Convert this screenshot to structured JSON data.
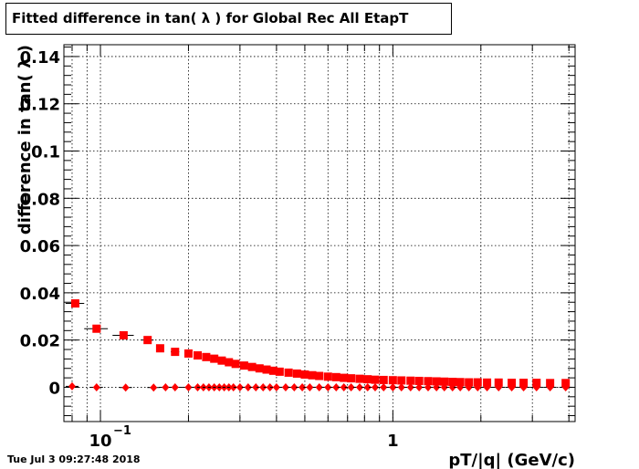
{
  "chart_data": {
    "type": "scatter",
    "title": "Fitted difference in tan( λ ) for Global Rec All EtapT",
    "xlabel": "pT/|q| (GeV/c)",
    "ylabel": "difference in tan( λ )",
    "xscale": "log",
    "xlim": [
      0.075,
      4.2
    ],
    "ylim": [
      -0.0145,
      0.145
    ],
    "grid": true,
    "legend": "none",
    "yticks": [
      {
        "value": 0,
        "label": "0"
      },
      {
        "value": 0.02,
        "label": "0.02"
      },
      {
        "value": 0.04,
        "label": "0.04"
      },
      {
        "value": 0.06,
        "label": "0.06"
      },
      {
        "value": 0.08,
        "label": "0.08"
      },
      {
        "value": 0.1,
        "label": "0.1"
      },
      {
        "value": 0.12,
        "label": "0.12"
      },
      {
        "value": 0.14,
        "label": "0.14"
      }
    ],
    "xticks": [
      {
        "value": 0.1,
        "label": "10",
        "exponent": "−1"
      },
      {
        "value": 1,
        "label": "1",
        "exponent": ""
      }
    ],
    "series": [
      {
        "marker": "square",
        "color": "#ff0000",
        "x": [
          0.082,
          0.097,
          0.12,
          0.145,
          0.16,
          0.18,
          0.2,
          0.215,
          0.23,
          0.245,
          0.26,
          0.275,
          0.29,
          0.31,
          0.33,
          0.35,
          0.37,
          0.39,
          0.41,
          0.44,
          0.47,
          0.5,
          0.53,
          0.56,
          0.6,
          0.64,
          0.68,
          0.72,
          0.77,
          0.82,
          0.87,
          0.93,
          1.0,
          1.07,
          1.15,
          1.23,
          1.32,
          1.41,
          1.5,
          1.6,
          1.7,
          1.82,
          1.95,
          2.1,
          2.3,
          2.55,
          2.8,
          3.1,
          3.45,
          3.9
        ],
        "y": [
          0.0355,
          0.0248,
          0.022,
          0.02,
          0.0165,
          0.015,
          0.0143,
          0.0135,
          0.0128,
          0.0121,
          0.0113,
          0.0106,
          0.0099,
          0.0092,
          0.0086,
          0.008,
          0.0075,
          0.007,
          0.0066,
          0.0062,
          0.0058,
          0.0054,
          0.0051,
          0.0048,
          0.0045,
          0.0043,
          0.004,
          0.0038,
          0.0036,
          0.0034,
          0.0032,
          0.0031,
          0.003,
          0.0029,
          0.0028,
          0.0027,
          0.0026,
          0.0025,
          0.0024,
          0.0023,
          0.0022,
          0.0021,
          0.0021,
          0.002,
          0.002,
          0.0019,
          0.0019,
          0.0019,
          0.0018,
          0.0018
        ],
        "xerr": [
          0.006,
          0.009,
          0.01,
          0.007,
          0.005,
          0.006,
          0.005,
          0.005,
          0.005,
          0.005,
          0.005,
          0.005,
          0.005,
          0.006,
          0.007,
          0.007,
          0.007,
          0.007,
          0.007,
          0.008,
          0.009,
          0.01,
          0.01,
          0.01,
          0.012,
          0.012,
          0.013,
          0.013,
          0.015,
          0.015,
          0.016,
          0.017,
          0.02,
          0.02,
          0.023,
          0.023,
          0.026,
          0.026,
          0.027,
          0.03,
          0.03,
          0.035,
          0.037,
          0.04,
          0.05,
          0.06,
          0.06,
          0.07,
          0.08,
          0.1
        ]
      },
      {
        "marker": "diamond",
        "color": "#ff0000",
        "x": [
          0.08,
          0.097,
          0.122,
          0.152,
          0.167,
          0.18,
          0.2,
          0.215,
          0.225,
          0.235,
          0.245,
          0.255,
          0.265,
          0.275,
          0.285,
          0.3,
          0.32,
          0.34,
          0.36,
          0.38,
          0.4,
          0.43,
          0.46,
          0.49,
          0.52,
          0.56,
          0.6,
          0.64,
          0.68,
          0.72,
          0.77,
          0.82,
          0.87,
          0.93,
          1.0,
          1.07,
          1.15,
          1.23,
          1.32,
          1.41,
          1.5,
          1.6,
          1.7,
          1.82,
          1.95,
          2.1,
          2.3,
          2.55,
          2.8,
          3.1,
          3.45,
          3.9
        ],
        "y": [
          0.0004,
          0.0,
          -0.0001,
          -0.0001,
          0.0,
          0.0,
          0.0,
          0.0,
          0.0,
          0.0,
          0.0,
          0.0,
          0.0,
          0.0,
          0.0,
          0.0,
          0.0,
          0.0,
          0.0,
          0.0,
          0.0,
          0.0,
          0.0,
          0.0,
          0.0,
          0.0,
          0.0,
          0.0,
          0.0,
          0.0,
          0.0,
          0.0,
          0.0,
          0.0,
          0.0,
          0.0,
          0.0,
          0.0,
          0.0,
          0.0,
          0.0,
          0.0,
          0.0,
          0.0,
          0.0,
          0.0,
          0.0,
          0.0,
          0.0,
          0.0,
          0.0,
          0.0
        ]
      }
    ]
  },
  "footer": {
    "datestamp": "Tue Jul  3 09:27:48 2018"
  }
}
